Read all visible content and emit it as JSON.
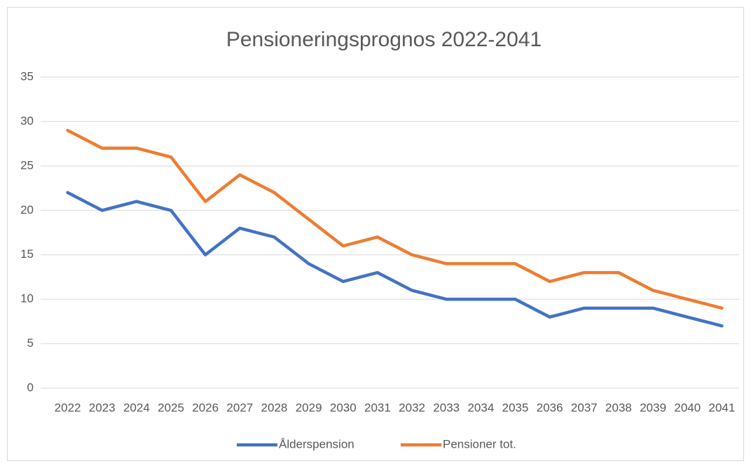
{
  "chart_data": {
    "type": "line",
    "title": "Pensioneringsprognos 2022-2041",
    "categories": [
      "2022",
      "2023",
      "2024",
      "2025",
      "2026",
      "2027",
      "2028",
      "2029",
      "2030",
      "2031",
      "2032",
      "2033",
      "2034",
      "2035",
      "2036",
      "2037",
      "2038",
      "2039",
      "2040",
      "2041"
    ],
    "series": [
      {
        "name": "Ålderspension",
        "color": "#4472c4",
        "values": [
          22,
          20,
          21,
          20,
          15,
          18,
          17,
          14,
          12,
          13,
          11,
          10,
          10,
          10,
          8,
          9,
          9,
          9,
          8,
          7
        ]
      },
      {
        "name": "Pensioner tot.",
        "color": "#ed7d31",
        "values": [
          29,
          27,
          27,
          26,
          21,
          24,
          22,
          19,
          16,
          17,
          15,
          14,
          14,
          14,
          12,
          13,
          13,
          11,
          10,
          9
        ]
      }
    ],
    "ylim": [
      0,
      35
    ],
    "yticks": [
      0,
      5,
      10,
      15,
      20,
      25,
      30,
      35
    ],
    "grid": true,
    "legend": "bottom"
  }
}
